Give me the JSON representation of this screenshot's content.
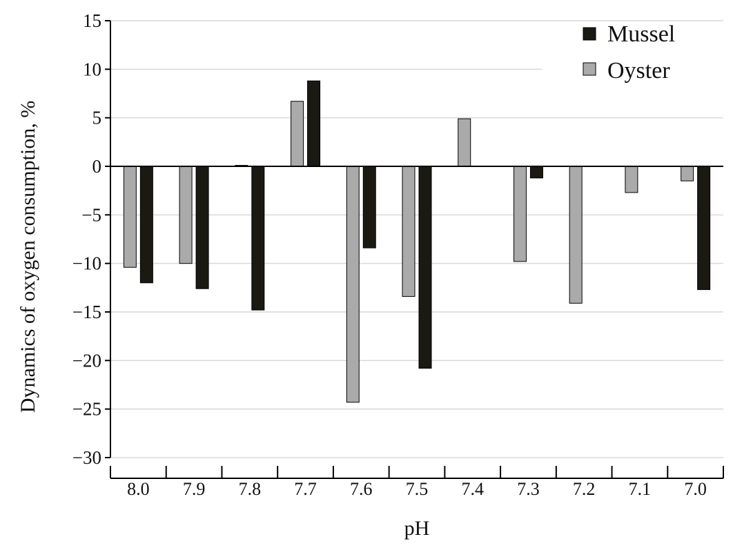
{
  "chart_data": {
    "type": "bar",
    "title": "",
    "xlabel": "pH",
    "ylabel": "Dynamics of oxygen consumption, %",
    "categories": [
      "8.0",
      "7.9",
      "7.8",
      "7.7",
      "7.6",
      "7.5",
      "7.4",
      "7.3",
      "7.2",
      "7.1",
      "7.0"
    ],
    "series": [
      {
        "name": "Oyster",
        "color": "#aaaaaa",
        "values": [
          -10.4,
          -10.0,
          0.1,
          6.7,
          -24.3,
          -13.4,
          4.9,
          -9.8,
          -14.1,
          -2.7,
          -1.5
        ]
      },
      {
        "name": "Mussel",
        "color": "#1a1a12",
        "values": [
          -12.0,
          -12.6,
          -14.8,
          8.8,
          -8.4,
          -20.8,
          0.0,
          -1.2,
          0.0,
          0.0,
          -12.7
        ]
      }
    ],
    "legend_order": [
      "Mussel",
      "Oyster"
    ],
    "ylim": [
      -30,
      15
    ],
    "yticks": [
      15,
      10,
      5,
      0,
      -5,
      -10,
      -15,
      -20,
      -25,
      -30
    ],
    "ytick_labels": [
      "15",
      "10",
      "5",
      "0",
      "−5",
      "−10",
      "−15",
      "−20",
      "−25",
      "−30"
    ],
    "grid": true,
    "legend_position": "top-right"
  }
}
